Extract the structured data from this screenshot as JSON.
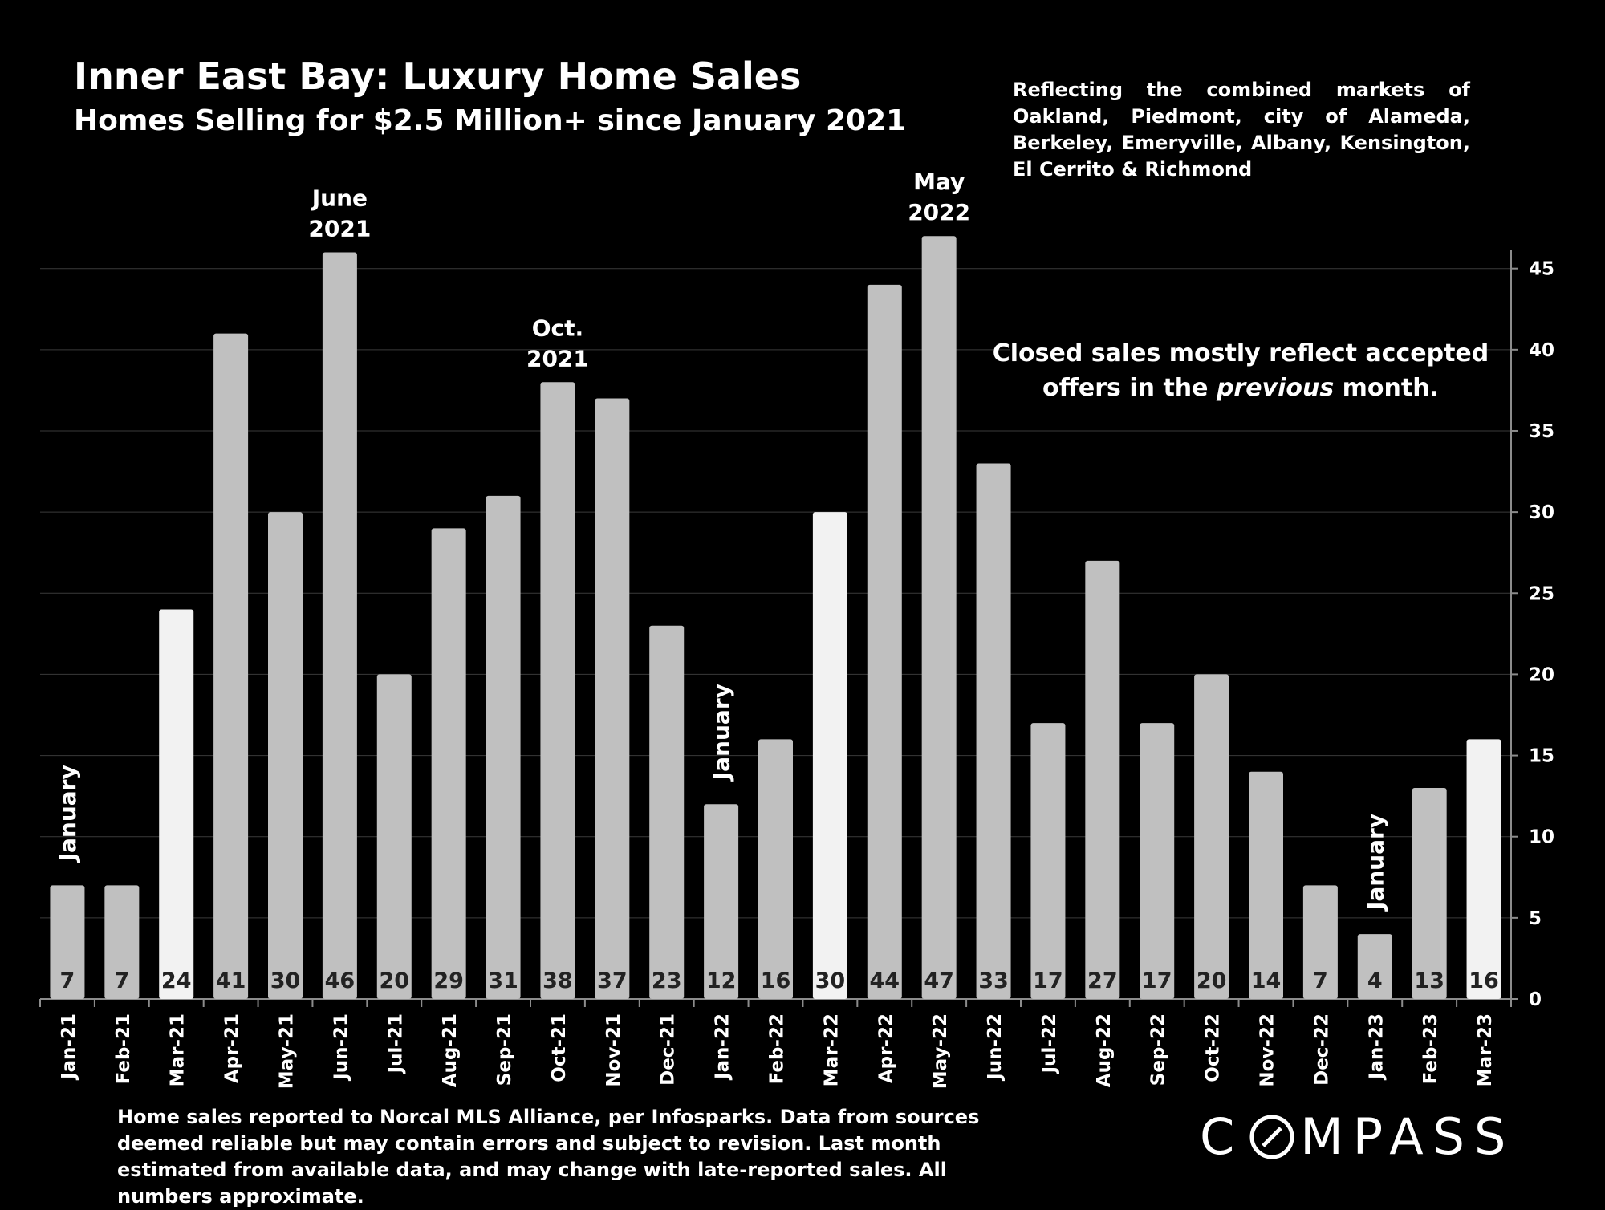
{
  "title": "Inner East Bay: Luxury Home Sales",
  "subtitle": "Homes Selling for $2.5 Million+ since January 2021",
  "market_note": "Reflecting the combined markets of Oakland, Piedmont, city of Alameda, Berkeley, Emeryville, Albany, Kensington, El Cerrito & Richmond",
  "footnote": "Home sales reported to Norcal MLS Alliance, per Infosparks. Data from sources deemed reliable but may contain errors and subject to revision.  Last month estimated from available data, and may change with late-reported sales. All numbers approximate.",
  "logo": {
    "before": "C",
    "after": "MPASS"
  },
  "chart_data": {
    "type": "bar",
    "categories": [
      "Jan-21",
      "Feb-21",
      "Mar-21",
      "Apr-21",
      "May-21",
      "Jun-21",
      "Jul-21",
      "Aug-21",
      "Sep-21",
      "Oct-21",
      "Nov-21",
      "Dec-21",
      "Jan-22",
      "Feb-22",
      "Mar-22",
      "Apr-22",
      "May-22",
      "Jun-22",
      "Jul-22",
      "Aug-22",
      "Sep-22",
      "Oct-22",
      "Nov-22",
      "Dec-22",
      "Jan-23",
      "Feb-23",
      "Mar-23"
    ],
    "values": [
      7,
      7,
      24,
      41,
      30,
      46,
      20,
      29,
      31,
      38,
      37,
      23,
      12,
      16,
      30,
      44,
      47,
      33,
      17,
      27,
      17,
      20,
      14,
      7,
      4,
      13,
      16
    ],
    "highlighted": [
      false,
      false,
      true,
      false,
      false,
      false,
      false,
      false,
      false,
      false,
      false,
      false,
      false,
      false,
      true,
      false,
      false,
      false,
      false,
      false,
      false,
      false,
      false,
      false,
      false,
      false,
      true
    ],
    "yticks": [
      0,
      5,
      10,
      15,
      20,
      25,
      30,
      35,
      40,
      45
    ],
    "ylim": [
      0,
      48
    ],
    "axis_side": "right",
    "grid": true,
    "colors": {
      "bar": "#c0c0c0",
      "highlight": "#f2f2f2",
      "grid": "#3a3a3a",
      "axis": "#8c8c8c"
    },
    "annotations": [
      {
        "index": 5,
        "lines": [
          "June",
          "2021"
        ]
      },
      {
        "index": 9,
        "lines": [
          "Oct.",
          "2021"
        ]
      },
      {
        "index": 16,
        "lines": [
          "May",
          "2022"
        ]
      }
    ],
    "rotated_annotations": [
      {
        "index": 0,
        "text": "January"
      },
      {
        "index": 12,
        "text": "January"
      },
      {
        "index": 24,
        "text": "January"
      }
    ],
    "callout": [
      "Closed sales mostly reflect accepted",
      "offers in the ",
      "previous",
      " month."
    ]
  }
}
